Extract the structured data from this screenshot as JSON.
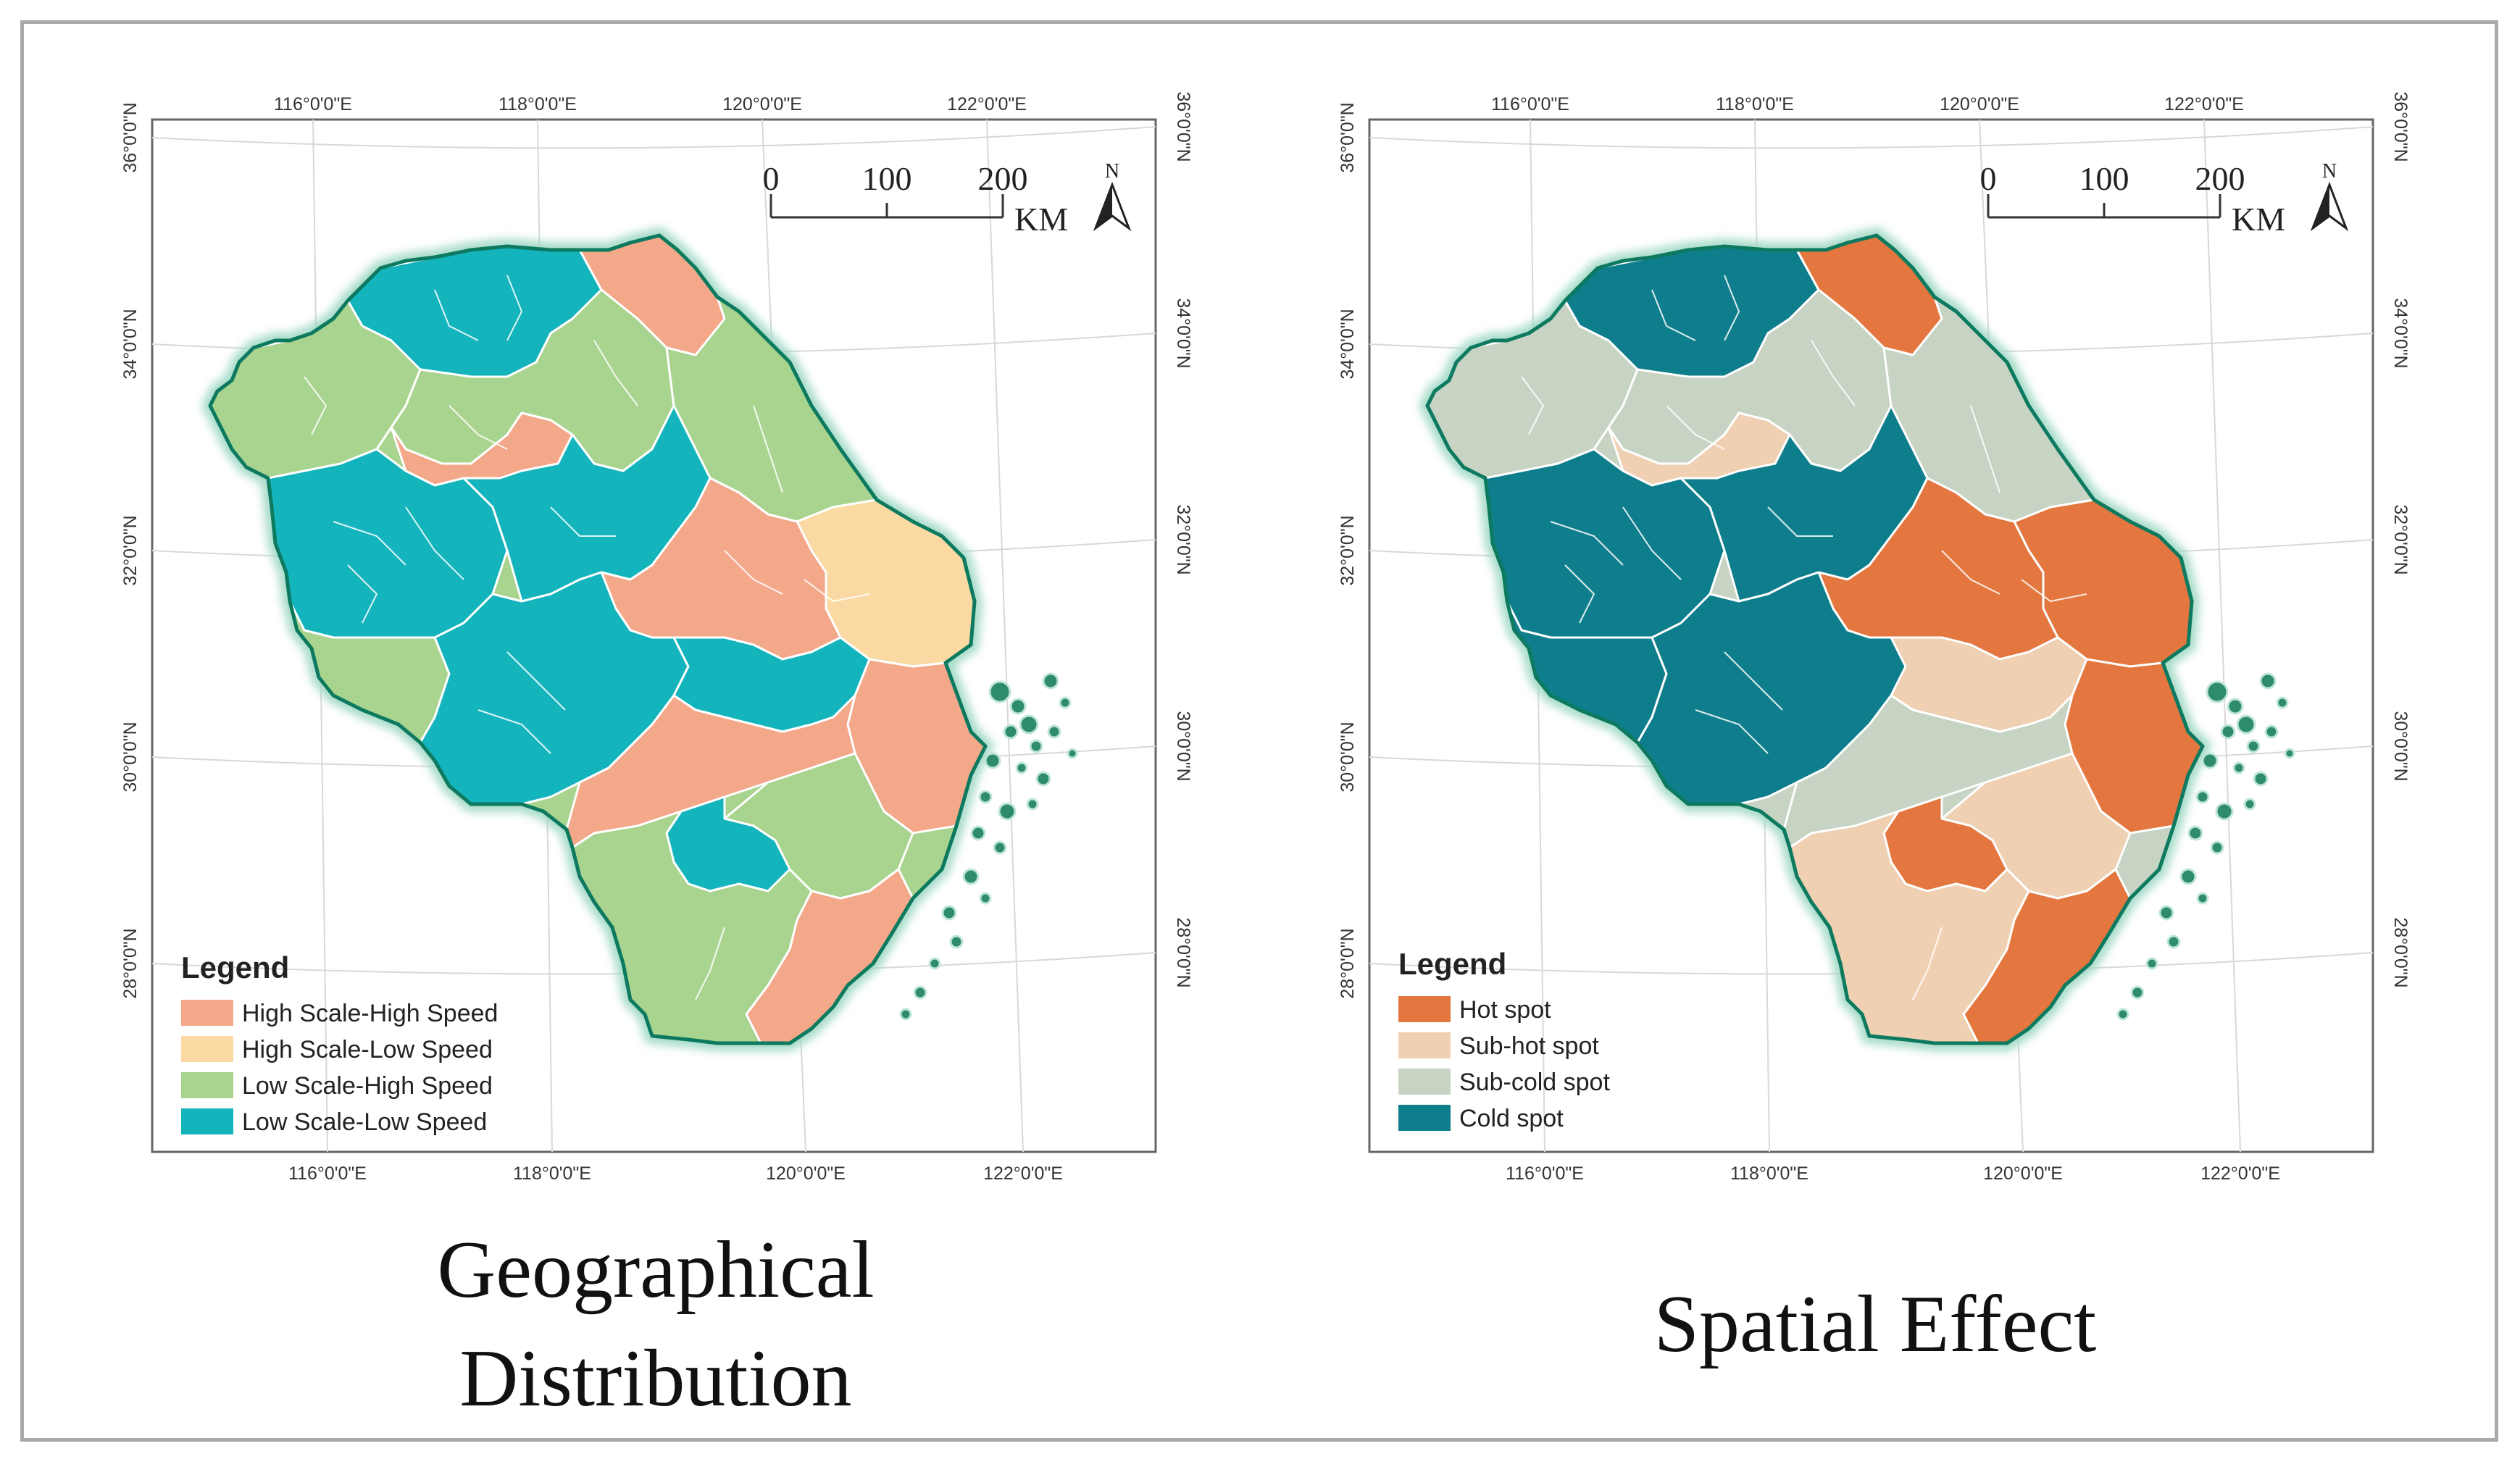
{
  "maps": [
    {
      "id": "left",
      "caption_lines": [
        "Geographical",
        "Distribution"
      ],
      "legend_title": "Legend",
      "legend_items": [
        {
          "label": "High Scale-High Speed",
          "color": "#f4a88a"
        },
        {
          "label": "High Scale-Low Speed",
          "color": "#fad9a3"
        },
        {
          "label": "Low Scale-High Speed",
          "color": "#a9d48f"
        },
        {
          "label": "Low Scale-Low Speed",
          "color": "#14b4bd"
        }
      ]
    },
    {
      "id": "right",
      "caption_lines": [
        "Spatial Effect"
      ],
      "legend_title": "Legend",
      "legend_items": [
        {
          "label": "Hot spot",
          "color": "#e4773f"
        },
        {
          "label": "Sub-hot spot",
          "color": "#f0d0b2"
        },
        {
          "label": "Sub-cold spot",
          "color": "#c7d3c3"
        },
        {
          "label": "Cold spot",
          "color": "#0f7e8c"
        }
      ]
    }
  ],
  "lon_labels": [
    "116°0'0\"E",
    "118°0'0\"E",
    "120°0'0\"E",
    "122°0'0\"E"
  ],
  "lat_labels": [
    "36°0'0\"N",
    "34°0'0\"N",
    "32°0'0\"N",
    "30°0'0\"N",
    "28°0'0\"N"
  ],
  "scale_bar": {
    "ticks": [
      "0",
      "100",
      "200"
    ],
    "unit": "KM"
  },
  "north_arrow": "N",
  "region_outline_color": "#0d7a5f",
  "region_boundary_color": "#ffffff",
  "island_color": "#2e8b6e"
}
